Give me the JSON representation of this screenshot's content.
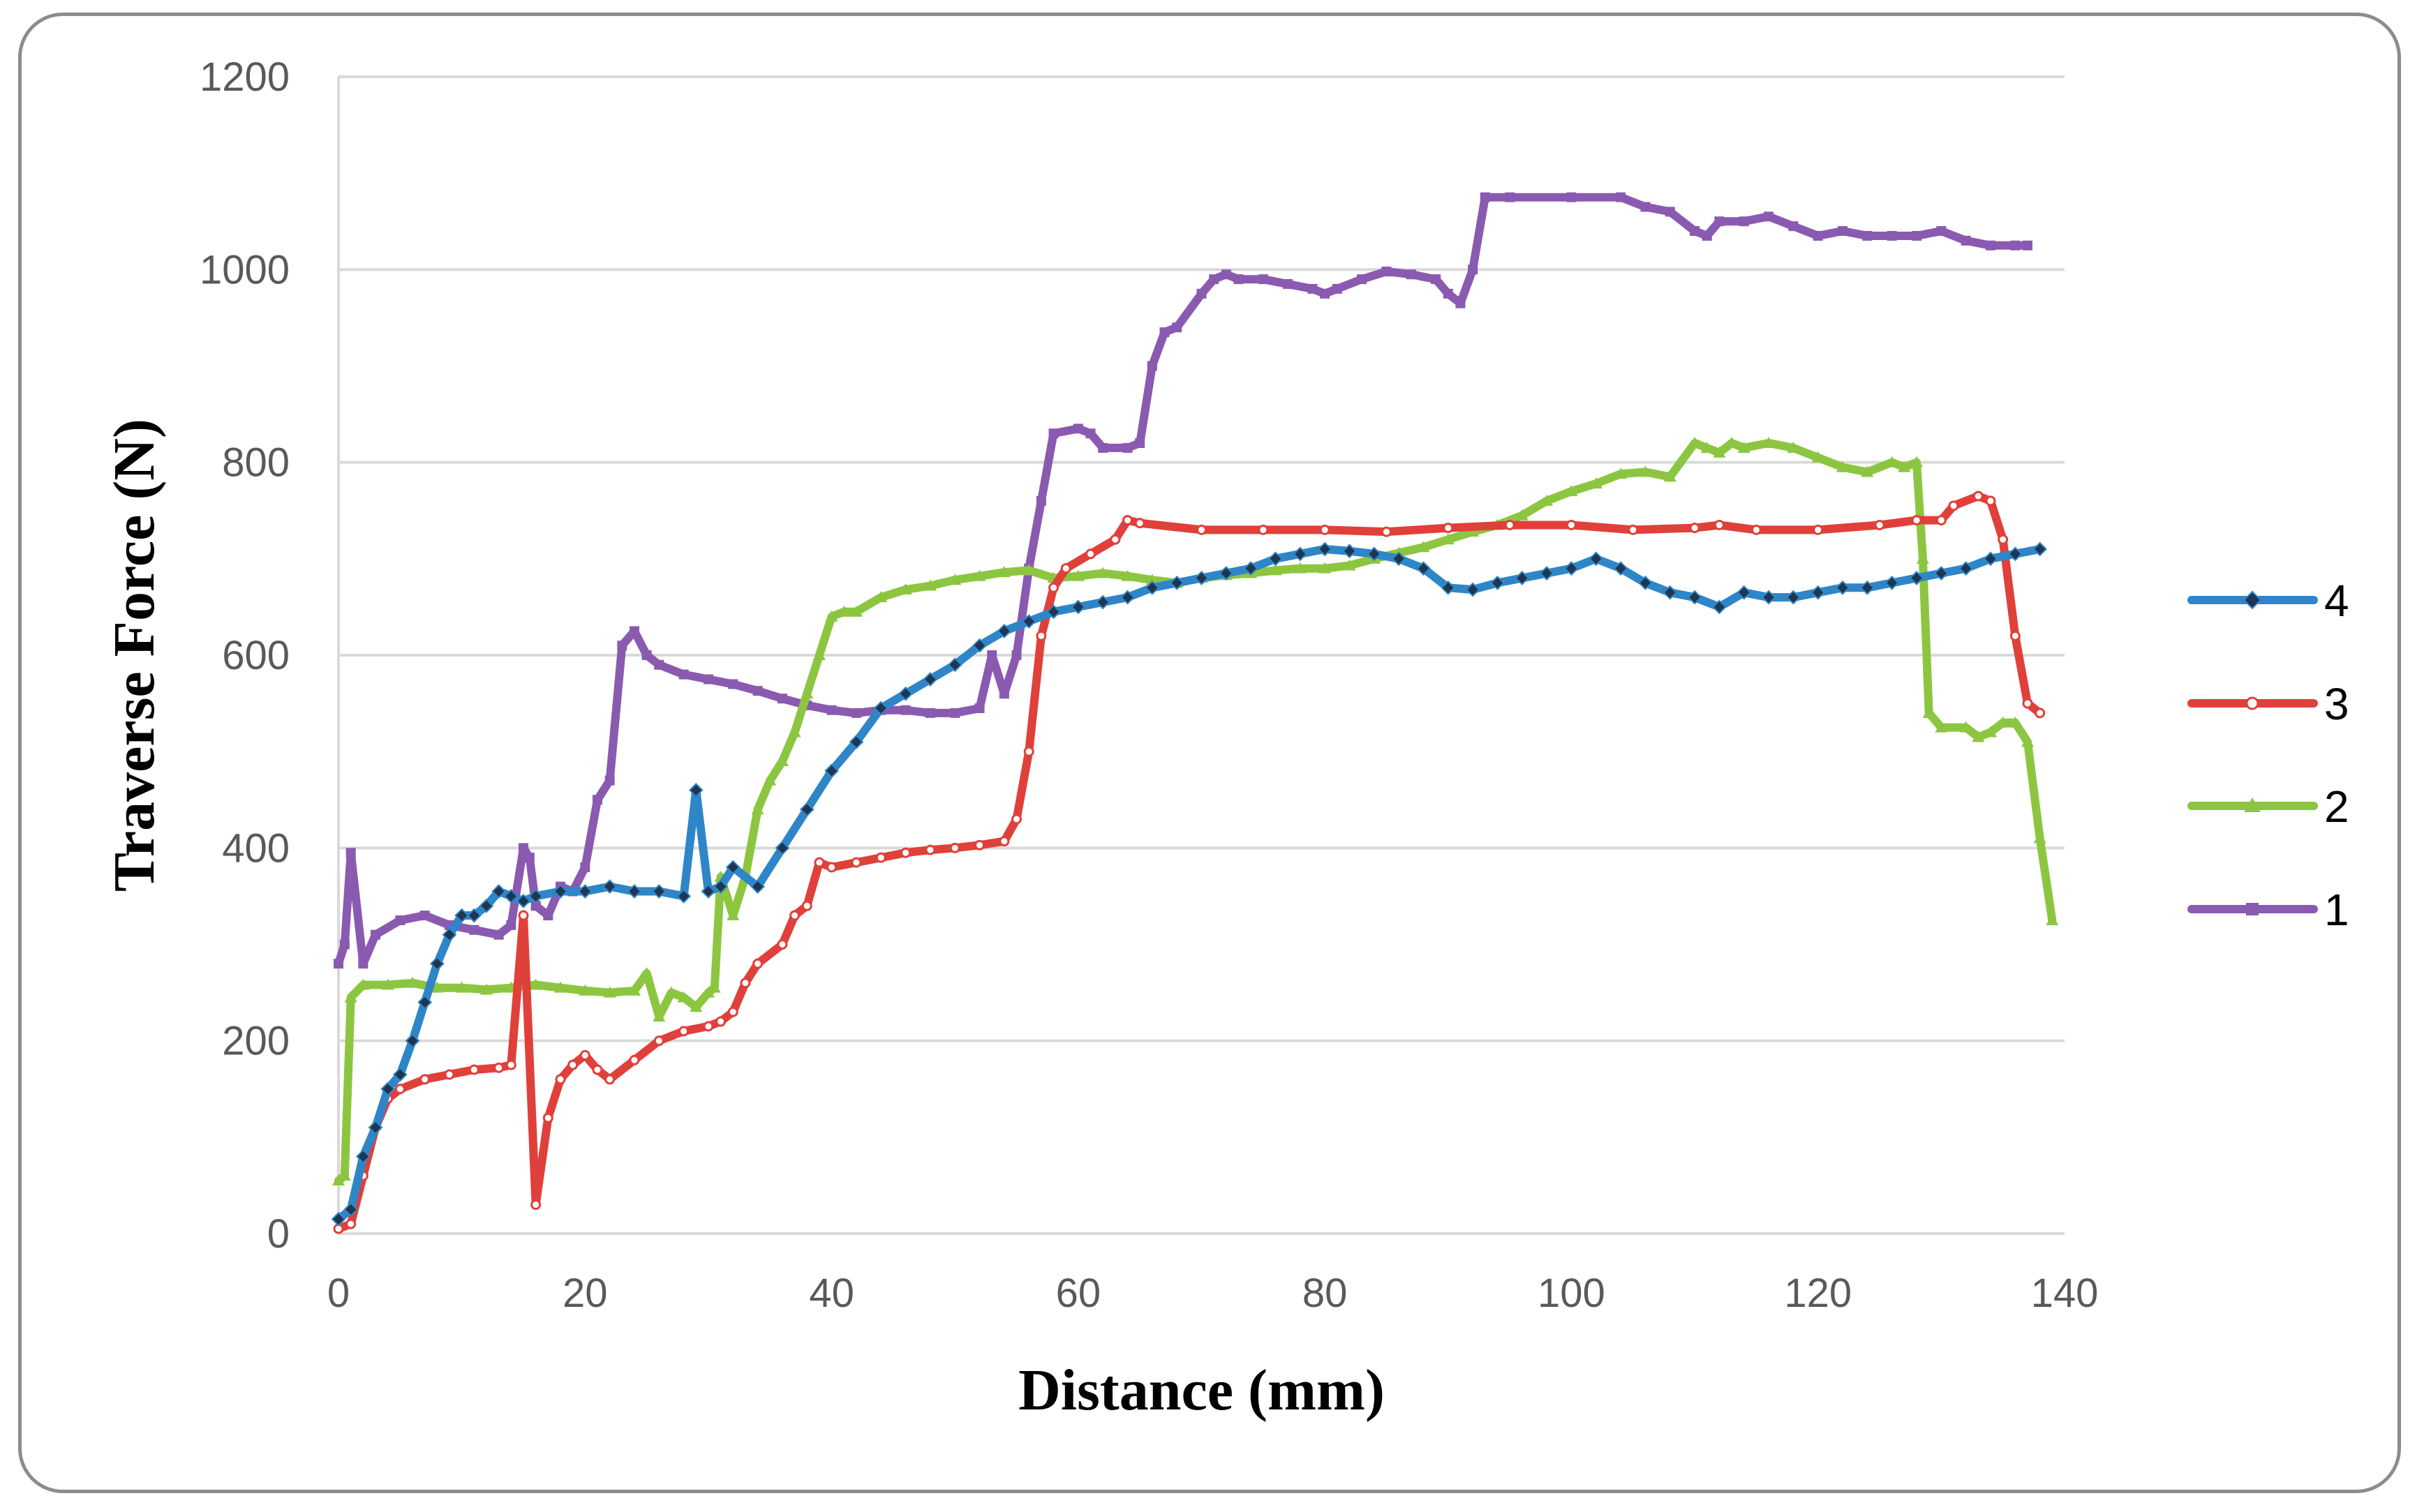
{
  "chart_data": {
    "type": "line",
    "title": "",
    "xlabel": "Distance (mm)",
    "ylabel": "Traverse Force (N)",
    "xlim": [
      0,
      140
    ],
    "ylim": [
      0,
      1200
    ],
    "x_ticks": [
      "0",
      "20",
      "40",
      "60",
      "80",
      "100",
      "120",
      "140"
    ],
    "y_ticks": [
      "0",
      "200",
      "400",
      "600",
      "800",
      "1000",
      "1200"
    ],
    "grid": "horizontal",
    "legend_position": "right",
    "legend_order": [
      "4",
      "3",
      "2",
      "1"
    ],
    "series": [
      {
        "name": "4",
        "color": "#2e86c8",
        "marker": "diamond",
        "x": [
          0,
          1,
          2,
          3,
          4,
          5,
          6,
          7,
          8,
          9,
          10,
          11,
          12,
          13,
          14,
          15,
          16,
          18,
          20,
          22,
          24,
          26,
          28,
          29,
          30,
          31,
          32,
          34,
          36,
          38,
          40,
          42,
          44,
          46,
          48,
          50,
          52,
          54,
          56,
          58,
          60,
          62,
          64,
          66,
          68,
          70,
          72,
          74,
          76,
          78,
          80,
          82,
          84,
          86,
          88,
          90,
          92,
          94,
          96,
          98,
          100,
          102,
          104,
          106,
          108,
          110,
          112,
          114,
          116,
          118,
          120,
          122,
          124,
          126,
          128,
          130,
          132,
          134,
          136,
          138
        ],
        "y": [
          15,
          25,
          80,
          110,
          150,
          165,
          200,
          240,
          280,
          310,
          330,
          330,
          340,
          355,
          350,
          345,
          350,
          355,
          355,
          360,
          355,
          355,
          350,
          460,
          355,
          360,
          380,
          360,
          400,
          440,
          480,
          510,
          545,
          560,
          575,
          590,
          610,
          625,
          635,
          645,
          650,
          655,
          660,
          670,
          675,
          680,
          685,
          690,
          700,
          705,
          710,
          708,
          705,
          700,
          690,
          670,
          668,
          675,
          680,
          685,
          690,
          700,
          690,
          675,
          665,
          660,
          650,
          665,
          660,
          660,
          665,
          670,
          670,
          675,
          680,
          685,
          690,
          700,
          705,
          710
        ]
      },
      {
        "name": "3",
        "color": "#e0403a",
        "marker": "circle",
        "x": [
          0,
          1,
          2,
          3,
          4,
          5,
          7,
          9,
          11,
          13,
          14,
          15,
          16,
          17,
          18,
          19,
          20,
          21,
          22,
          24,
          26,
          28,
          30,
          31,
          32,
          33,
          34,
          36,
          37,
          38,
          39,
          40,
          42,
          44,
          46,
          48,
          50,
          52,
          54,
          55,
          56,
          57,
          58,
          59,
          61,
          63,
          64,
          65,
          70,
          75,
          80,
          85,
          90,
          95,
          100,
          105,
          110,
          112,
          115,
          120,
          125,
          128,
          130,
          131,
          133,
          134,
          135,
          136,
          137,
          138
        ],
        "y": [
          5,
          10,
          60,
          110,
          140,
          150,
          160,
          165,
          170,
          172,
          175,
          330,
          30,
          120,
          160,
          175,
          185,
          170,
          160,
          180,
          200,
          210,
          215,
          220,
          230,
          260,
          280,
          300,
          330,
          340,
          385,
          380,
          385,
          390,
          395,
          398,
          400,
          403,
          407,
          430,
          500,
          620,
          670,
          690,
          705,
          720,
          740,
          737,
          730,
          730,
          730,
          728,
          732,
          735,
          735,
          730,
          732,
          735,
          730,
          730,
          735,
          740,
          740,
          755,
          765,
          760,
          720,
          620,
          550,
          540
        ]
      },
      {
        "name": "2",
        "color": "#8cc641",
        "marker": "triangle",
        "x": [
          0,
          0.5,
          1,
          2,
          4,
          6,
          8,
          10,
          12,
          14,
          16,
          18,
          20,
          22,
          24,
          25,
          26,
          27,
          28,
          29,
          30,
          30.5,
          31,
          32,
          33,
          34,
          35,
          36,
          37,
          38,
          39,
          40,
          41,
          42,
          44,
          46,
          48,
          50,
          52,
          54,
          56,
          58,
          60,
          62,
          64,
          66,
          68,
          70,
          72,
          74,
          76,
          78,
          80,
          82,
          84,
          86,
          88,
          90,
          92,
          94,
          96,
          98,
          100,
          102,
          104,
          106,
          108,
          110,
          111,
          112,
          113,
          114,
          116,
          118,
          120,
          122,
          124,
          126,
          127,
          128,
          128.5,
          129,
          130,
          132,
          133,
          134,
          135,
          136,
          137,
          138,
          139
        ],
        "y": [
          55,
          60,
          245,
          258,
          258,
          260,
          255,
          255,
          253,
          255,
          258,
          255,
          252,
          250,
          252,
          270,
          225,
          250,
          245,
          235,
          250,
          255,
          370,
          330,
          370,
          440,
          470,
          490,
          520,
          560,
          600,
          640,
          645,
          645,
          660,
          668,
          672,
          678,
          682,
          686,
          688,
          680,
          682,
          685,
          682,
          678,
          675,
          680,
          683,
          685,
          688,
          690,
          690,
          693,
          700,
          706,
          712,
          720,
          728,
          735,
          745,
          760,
          770,
          778,
          788,
          790,
          785,
          820,
          815,
          810,
          820,
          815,
          820,
          815,
          805,
          795,
          790,
          800,
          795,
          800,
          700,
          540,
          525,
          525,
          515,
          520,
          530,
          530,
          510,
          410,
          325
        ]
      },
      {
        "name": "1",
        "color": "#8a5ab0",
        "marker": "square",
        "x": [
          0,
          0.5,
          1,
          2,
          3,
          5,
          7,
          9,
          11,
          13,
          14,
          15,
          15.5,
          16,
          17,
          18,
          19,
          20,
          21,
          22,
          23,
          24,
          25,
          26,
          28,
          30,
          32,
          34,
          36,
          38,
          40,
          42,
          44,
          46,
          48,
          50,
          52,
          53,
          54,
          55,
          56,
          57,
          58,
          60,
          61,
          62,
          64,
          65,
          66,
          67,
          68,
          70,
          71,
          72,
          73,
          75,
          77,
          79,
          80,
          81,
          83,
          85,
          87,
          89,
          90,
          91,
          92,
          93,
          95,
          100,
          104,
          106,
          108,
          110,
          111,
          112,
          114,
          116,
          118,
          120,
          122,
          124,
          126,
          128,
          130,
          132,
          134,
          136,
          137
        ],
        "y": [
          280,
          300,
          395,
          280,
          310,
          325,
          330,
          320,
          315,
          310,
          320,
          400,
          390,
          340,
          330,
          360,
          355,
          380,
          450,
          470,
          610,
          625,
          600,
          590,
          580,
          575,
          570,
          563,
          555,
          548,
          543,
          540,
          543,
          543,
          540,
          540,
          545,
          600,
          560,
          600,
          690,
          760,
          830,
          835,
          830,
          815,
          815,
          820,
          900,
          935,
          940,
          975,
          990,
          995,
          990,
          990,
          985,
          980,
          975,
          980,
          990,
          998,
          995,
          990,
          975,
          965,
          1000,
          1075,
          1075,
          1075,
          1075,
          1065,
          1060,
          1040,
          1035,
          1050,
          1050,
          1055,
          1045,
          1035,
          1040,
          1035,
          1035,
          1035,
          1040,
          1030,
          1025,
          1025,
          1025
        ]
      }
    ]
  }
}
